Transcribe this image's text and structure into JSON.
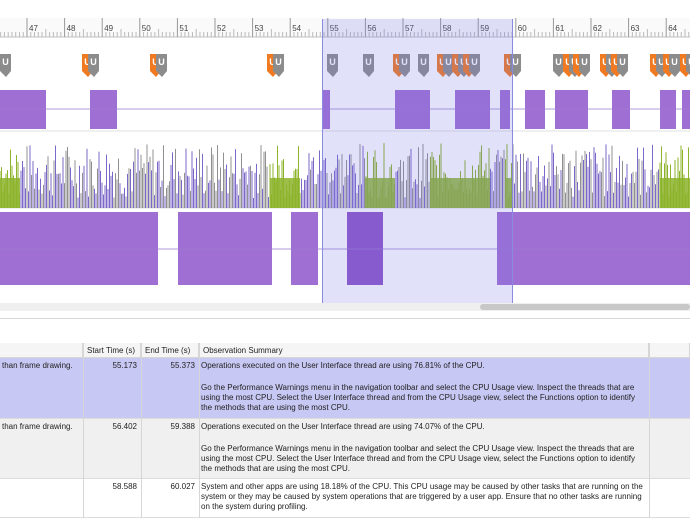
{
  "ruler": {
    "ticks": [
      "47",
      "48",
      "49",
      "50",
      "51",
      "52",
      "53",
      "54",
      "55",
      "56",
      "57",
      "58",
      "59",
      "60",
      "61",
      "62",
      "63",
      "64"
    ]
  },
  "colors": {
    "ui_thread": "#a06fd3",
    "ui_thread_dark": "#8c54c6",
    "cpu_green": "#8cb32a",
    "cpu_purple": "#7c68c8",
    "cpu_gray": "#909090",
    "marker_gray": "#8c8c8c",
    "marker_orange": "#f07a22",
    "selection": "#7878e6"
  },
  "markers": [
    {
      "kind": "gray-single"
    },
    {
      "kind": "orange-pair"
    },
    {
      "kind": "orange-pair"
    },
    {
      "kind": "orange-pair"
    },
    {
      "kind": "gray-single"
    },
    {
      "kind": "gray-single"
    },
    {
      "kind": "orange-pair"
    },
    {
      "kind": "gray-single"
    },
    {
      "kind": "orange-pair"
    },
    {
      "kind": "orange-pair"
    },
    {
      "kind": "orange-pair"
    },
    {
      "kind": "orange-pair"
    },
    {
      "kind": "gray-single"
    },
    {
      "kind": "orange-pair"
    },
    {
      "kind": "orange-pair"
    },
    {
      "kind": "orange-pair"
    },
    {
      "kind": "orange-pair"
    },
    {
      "kind": "orange-pair"
    },
    {
      "kind": "orange-pair"
    },
    {
      "kind": "orange-pair"
    }
  ],
  "marker_glyph": "U",
  "table": {
    "headers": {
      "start_time": "Start Time (s)",
      "end_time": "End Time (s)",
      "observation": "Observation Summary"
    },
    "rows": [
      {
        "issue": "than frame drawing.",
        "start": "55.173",
        "end": "55.373",
        "obs_line1": "Operations executed on the User Interface thread are using 76.81% of the CPU.",
        "obs_line2": "Go the Performance Warnings menu in the navigation toolbar and select the CPU Usage view. Inspect the threads that are using the most CPU. Select the User Interface thread and from the CPU Usage view, select the Functions option to identify the methods that are using the most CPU.",
        "selected": true
      },
      {
        "issue": "than frame drawing.",
        "start": "56.402",
        "end": "59.388",
        "obs_line1": "Operations executed on the User Interface thread are using 74.07% of the CPU.",
        "obs_line2": "Go the Performance Warnings menu in the navigation toolbar and select the CPU Usage view. Inspect the threads that are using the most CPU. Select the User Interface thread and from the CPU Usage view, select the Functions option to identify the methods that are using the most CPU.",
        "selected": false
      },
      {
        "issue": "",
        "start": "58.588",
        "end": "60.027",
        "obs_line1": "System and other apps are using 18.18% of the CPU. This CPU usage may be caused by other tasks that are running on the system or they may be caused by system operations that are triggered by a user app. Ensure that no other tasks are running on the system during profiling.",
        "obs_line2": "",
        "selected": false
      }
    ]
  }
}
